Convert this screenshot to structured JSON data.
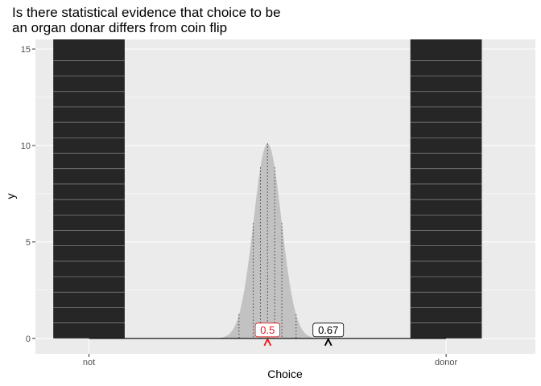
{
  "chart_data": {
    "type": "bar",
    "title_lines": [
      "Is there statistical evidence that choice to be",
      "an organ donar differs from coin flip"
    ],
    "xlabel": "Choice",
    "ylabel": "y",
    "x_ticks": [
      {
        "value": 0,
        "label": "not"
      },
      {
        "value": 1,
        "label": "donor"
      }
    ],
    "xlim": [
      -0.15,
      1.25
    ],
    "ylim": [
      -0.8,
      15.5
    ],
    "y_ticks": [
      0,
      5,
      10,
      15
    ],
    "bars": [
      {
        "x": 0,
        "width": 0.2,
        "height": 25,
        "stack_lines": [
          0.8,
          1.6,
          2.4,
          3.2,
          4.0,
          4.8,
          5.6,
          6.4,
          7.2,
          8.0,
          8.8,
          9.6,
          10.4,
          11.2,
          12.0,
          12.8,
          13.6,
          14.4
        ]
      },
      {
        "x": 1,
        "width": 0.2,
        "height": 25,
        "stack_lines": [
          0.8,
          1.6,
          2.4,
          3.2,
          4.0,
          4.8,
          5.6,
          6.4,
          7.2,
          8.0,
          8.8,
          9.6,
          10.4,
          11.2,
          12.0,
          12.8,
          13.6,
          14.4
        ]
      }
    ],
    "null_distribution": {
      "center": 0.5,
      "sd": 0.039,
      "peak": 10.1
    },
    "dotted_lines_x": [
      0.42,
      0.46,
      0.48,
      0.5,
      0.52,
      0.54,
      0.58
    ],
    "annotations": [
      {
        "value": 0.5,
        "label": "0.5",
        "color": "#e41a1c"
      },
      {
        "value": 0.67,
        "label": "0.67",
        "color": "#000000"
      }
    ],
    "colors": {
      "panel": "#ebebeb",
      "grid": "#ffffff",
      "bar": "#262626",
      "density": "#c2c2c2"
    }
  }
}
